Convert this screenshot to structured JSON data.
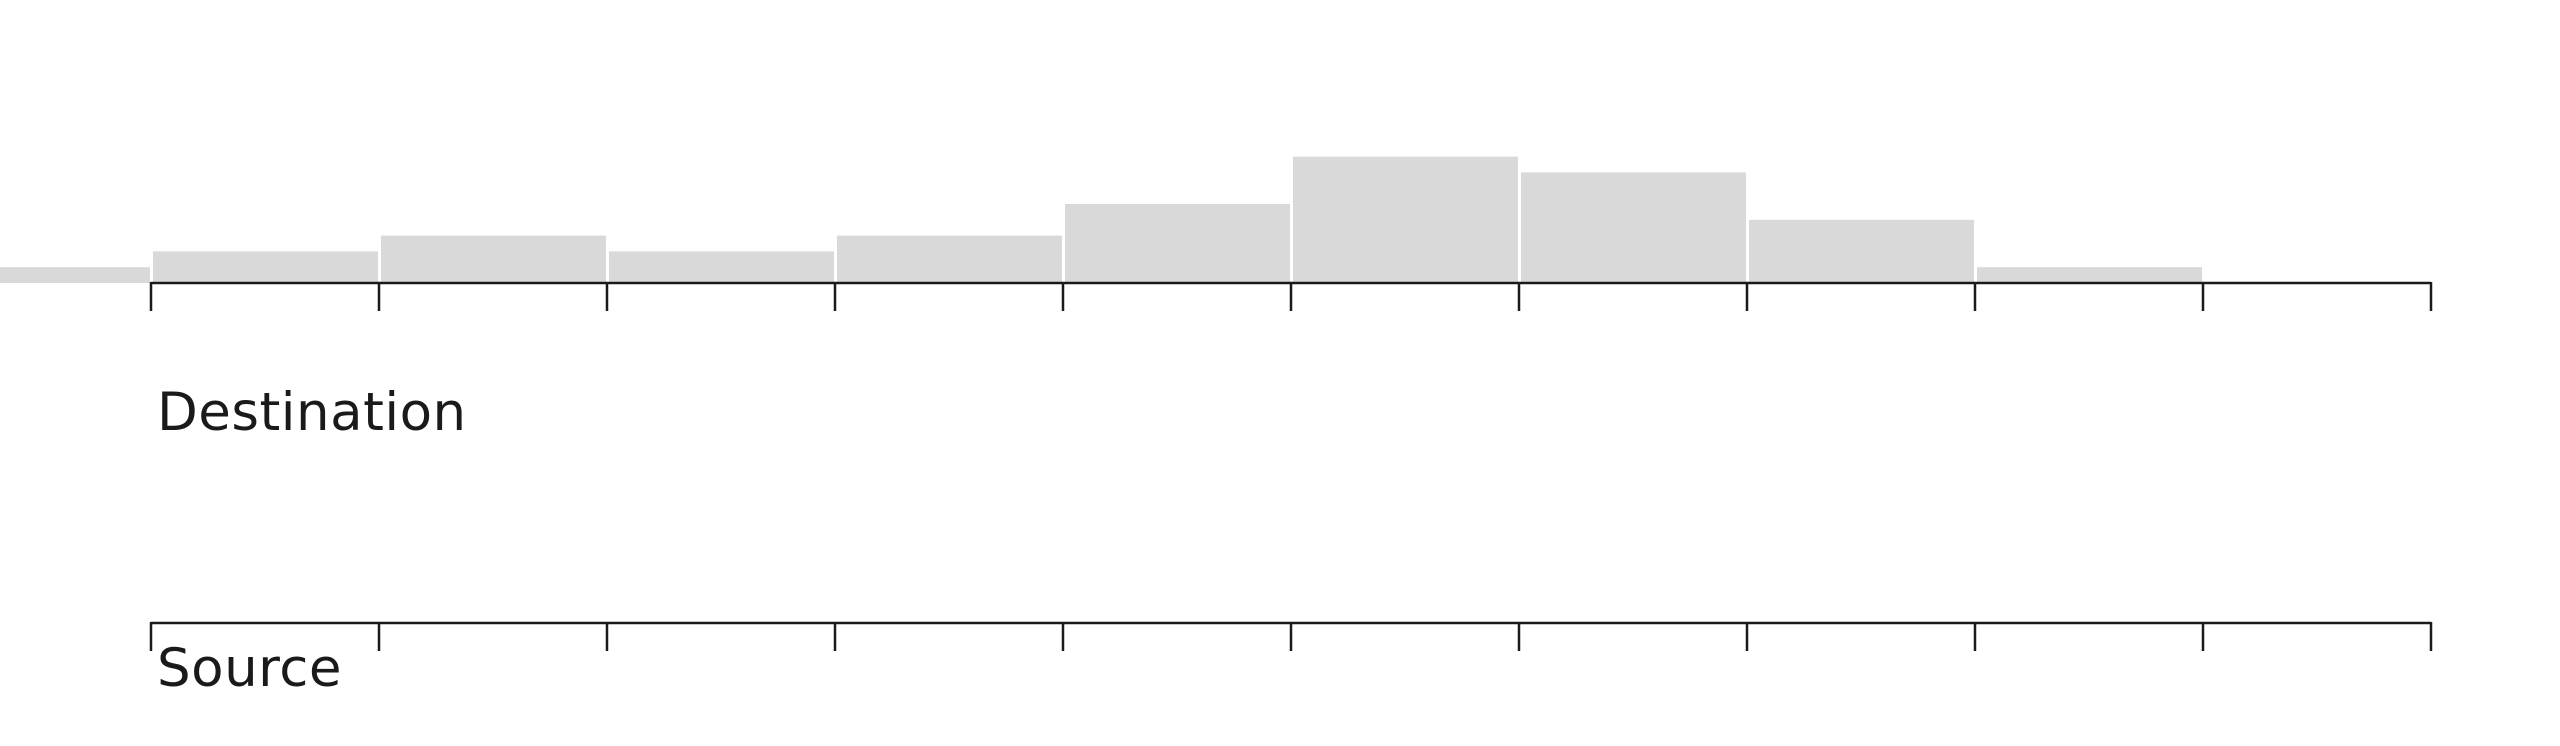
{
  "chart_data": {
    "type": "bar",
    "layout": "stacked",
    "histogram": {
      "bar_color": "#d9d9d9",
      "bins": [
        {
          "x0": -1,
          "x1": 0,
          "value": 1
        },
        {
          "x0": 0,
          "x1": 1,
          "value": 2
        },
        {
          "x0": 1,
          "x1": 2,
          "value": 3
        },
        {
          "x0": 2,
          "x1": 3,
          "value": 2
        },
        {
          "x0": 3,
          "x1": 4,
          "value": 3
        },
        {
          "x0": 4,
          "x1": 5,
          "value": 5
        },
        {
          "x0": 5,
          "x1": 6,
          "value": 8
        },
        {
          "x0": 6,
          "x1": 7,
          "value": 7
        },
        {
          "x0": 7,
          "x1": 8,
          "value": 4
        },
        {
          "x0": 8,
          "x1": 9,
          "value": 1
        }
      ]
    },
    "axes": [
      {
        "label": "Destination",
        "tick_count": 11,
        "xlim": [
          0,
          10
        ]
      },
      {
        "label": "Source",
        "tick_count": 11,
        "xlim": [
          0,
          10
        ]
      }
    ],
    "grid": false,
    "axis_color": "#1a1a1a"
  }
}
